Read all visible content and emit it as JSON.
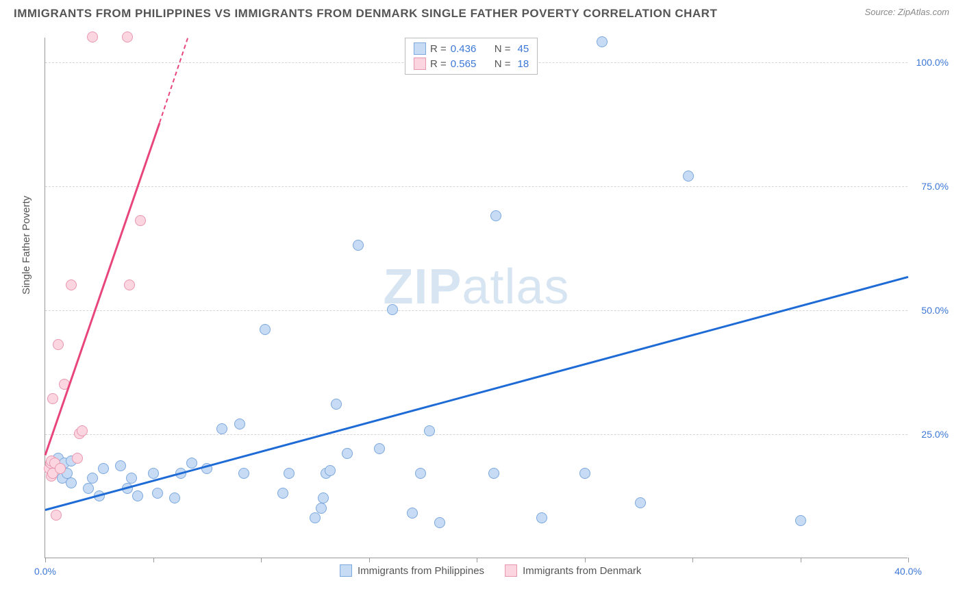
{
  "title": "IMMIGRANTS FROM PHILIPPINES VS IMMIGRANTS FROM DENMARK SINGLE FATHER POVERTY CORRELATION CHART",
  "source": "Source: ZipAtlas.com",
  "y_axis_label": "Single Father Poverty",
  "watermark_bold": "ZIP",
  "watermark_rest": "atlas",
  "chart": {
    "type": "scatter",
    "background_color": "#ffffff",
    "grid_color": "#d5d5d5",
    "xlim": [
      0,
      40
    ],
    "ylim": [
      0,
      105
    ],
    "x_ticks": [
      0,
      5,
      10,
      15,
      20,
      25,
      30,
      35,
      40
    ],
    "x_tick_labels": {
      "0": "0.0%",
      "40": "40.0%"
    },
    "y_ticks": [
      25,
      50,
      75,
      100
    ],
    "y_tick_labels": {
      "25": "25.0%",
      "50": "50.0%",
      "75": "75.0%",
      "100": "100.0%"
    },
    "axis_label_color": "#3b77d6",
    "series": [
      {
        "name": "Immigrants from Philippines",
        "color_fill": "#c7dbf4",
        "color_stroke": "#7ba8dd",
        "trend_color": "#1e6bd6",
        "R": "0.436",
        "N": "45",
        "trend": {
          "x1": 0,
          "y1": 10,
          "x2": 40,
          "y2": 57
        },
        "points": [
          [
            0.4,
            18
          ],
          [
            0.6,
            20
          ],
          [
            0.8,
            16
          ],
          [
            0.9,
            19
          ],
          [
            1.0,
            17
          ],
          [
            1.2,
            15
          ],
          [
            1.2,
            19.5
          ],
          [
            2.0,
            14
          ],
          [
            2.2,
            16
          ],
          [
            2.5,
            12.5
          ],
          [
            2.7,
            18
          ],
          [
            3.5,
            18.5
          ],
          [
            3.8,
            14
          ],
          [
            4.0,
            16
          ],
          [
            4.3,
            12.5
          ],
          [
            5.0,
            17
          ],
          [
            5.2,
            13
          ],
          [
            6.0,
            12
          ],
          [
            6.3,
            17
          ],
          [
            6.8,
            19
          ],
          [
            7.5,
            18
          ],
          [
            8.2,
            26
          ],
          [
            9.0,
            27
          ],
          [
            9.2,
            17
          ],
          [
            10.2,
            46
          ],
          [
            11.0,
            13
          ],
          [
            11.3,
            17
          ],
          [
            12.5,
            8
          ],
          [
            12.8,
            10
          ],
          [
            12.9,
            12
          ],
          [
            13.0,
            17
          ],
          [
            13.2,
            17.5
          ],
          [
            13.5,
            31
          ],
          [
            14.0,
            21
          ],
          [
            14.5,
            63
          ],
          [
            15.5,
            22
          ],
          [
            16.1,
            50
          ],
          [
            17.0,
            9
          ],
          [
            17.4,
            17
          ],
          [
            17.8,
            25.5
          ],
          [
            18.3,
            7
          ],
          [
            20.8,
            17
          ],
          [
            20.9,
            69
          ],
          [
            23.0,
            8
          ],
          [
            25.0,
            17
          ],
          [
            25.8,
            104
          ],
          [
            27.6,
            11
          ],
          [
            29.8,
            77
          ],
          [
            35.0,
            7.5
          ]
        ]
      },
      {
        "name": "Immigrants from Denmark",
        "color_fill": "#fbd6e0",
        "color_stroke": "#e996af",
        "trend_color": "#e8467b",
        "R": "0.565",
        "N": "18",
        "trend": {
          "x1": 0,
          "y1": 21,
          "x2": 5.3,
          "y2": 88
        },
        "trend_dash": {
          "x1": 5.3,
          "y1": 88,
          "x2": 6.6,
          "y2": 105
        },
        "points": [
          [
            0.2,
            18
          ],
          [
            0.25,
            19
          ],
          [
            0.3,
            16.5
          ],
          [
            0.3,
            19.5
          ],
          [
            0.35,
            17
          ],
          [
            0.35,
            32
          ],
          [
            0.45,
            19
          ],
          [
            0.5,
            8.5
          ],
          [
            0.6,
            43
          ],
          [
            0.7,
            18
          ],
          [
            0.9,
            35
          ],
          [
            1.2,
            55
          ],
          [
            1.5,
            20
          ],
          [
            1.6,
            25
          ],
          [
            1.7,
            25.5
          ],
          [
            2.2,
            105
          ],
          [
            3.8,
            105
          ],
          [
            3.9,
            55
          ],
          [
            4.4,
            68
          ]
        ]
      }
    ]
  },
  "legend_top": {
    "R_label": "R =",
    "N_label": "N ="
  }
}
